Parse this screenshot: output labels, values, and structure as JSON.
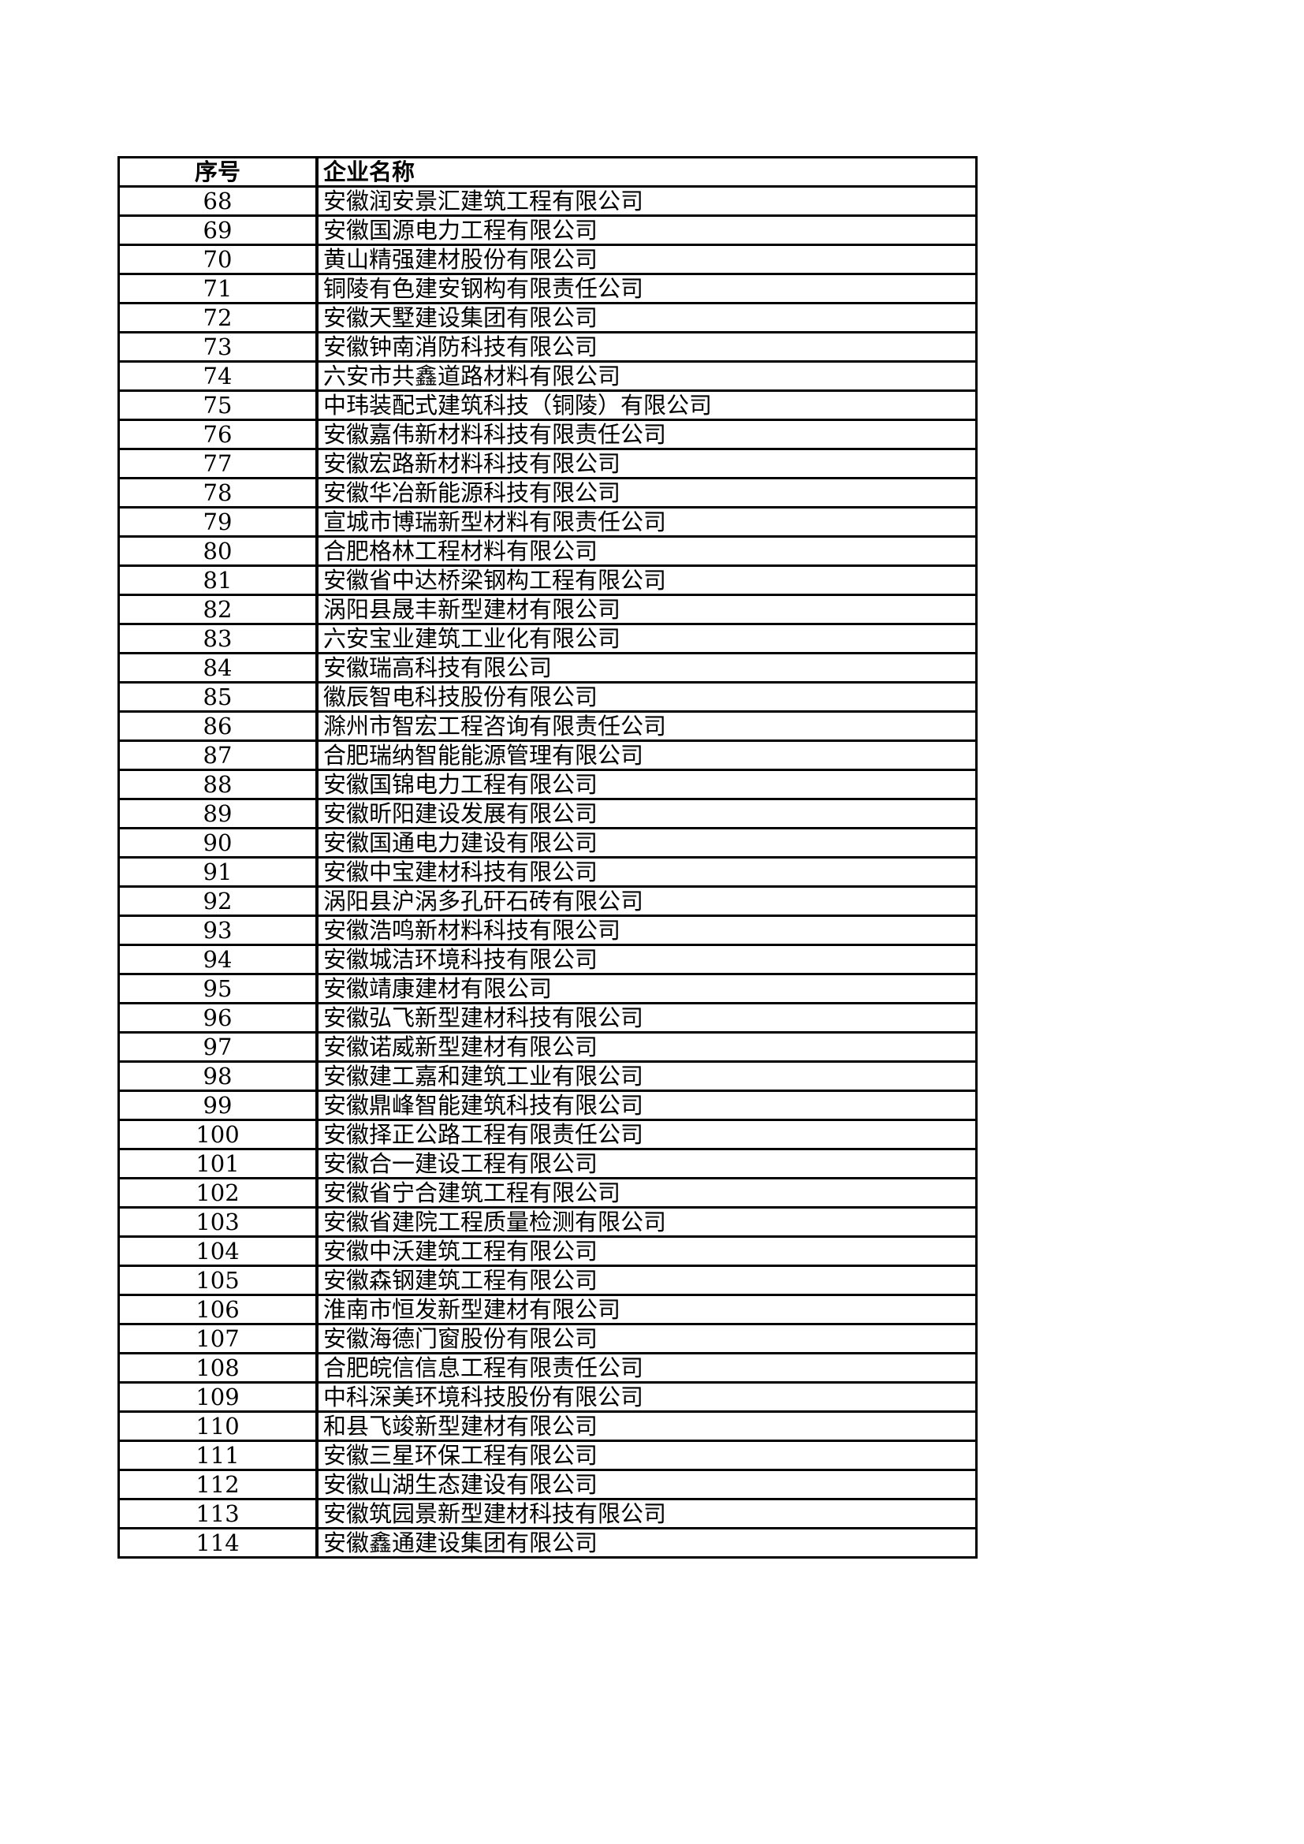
{
  "table": {
    "headers": [
      "序号",
      "企业名称"
    ],
    "rows": [
      [
        "68",
        "安徽润安景汇建筑工程有限公司"
      ],
      [
        "69",
        "安徽国源电力工程有限公司"
      ],
      [
        "70",
        "黄山精强建材股份有限公司"
      ],
      [
        "71",
        "铜陵有色建安钢构有限责任公司"
      ],
      [
        "72",
        "安徽天墅建设集团有限公司"
      ],
      [
        "73",
        "安徽钟南消防科技有限公司"
      ],
      [
        "74",
        "六安市共鑫道路材料有限公司"
      ],
      [
        "75",
        "中玮装配式建筑科技（铜陵）有限公司"
      ],
      [
        "76",
        "安徽嘉伟新材料科技有限责任公司"
      ],
      [
        "77",
        "安徽宏路新材料科技有限公司"
      ],
      [
        "78",
        "安徽华冶新能源科技有限公司"
      ],
      [
        "79",
        "宣城市博瑞新型材料有限责任公司"
      ],
      [
        "80",
        "合肥格林工程材料有限公司"
      ],
      [
        "81",
        "安徽省中达桥梁钢构工程有限公司"
      ],
      [
        "82",
        "涡阳县晟丰新型建材有限公司"
      ],
      [
        "83",
        "六安宝业建筑工业化有限公司"
      ],
      [
        "84",
        "安徽瑞高科技有限公司"
      ],
      [
        "85",
        "徽辰智电科技股份有限公司"
      ],
      [
        "86",
        "滁州市智宏工程咨询有限责任公司"
      ],
      [
        "87",
        "合肥瑞纳智能能源管理有限公司"
      ],
      [
        "88",
        "安徽国锦电力工程有限公司"
      ],
      [
        "89",
        "安徽昕阳建设发展有限公司"
      ],
      [
        "90",
        "安徽国通电力建设有限公司"
      ],
      [
        "91",
        "安徽中宝建材科技有限公司"
      ],
      [
        "92",
        "涡阳县沪涡多孔矸石砖有限公司"
      ],
      [
        "93",
        "安徽浩鸣新材料科技有限公司"
      ],
      [
        "94",
        "安徽城洁环境科技有限公司"
      ],
      [
        "95",
        "安徽靖康建材有限公司"
      ],
      [
        "96",
        "安徽弘飞新型建材科技有限公司"
      ],
      [
        "97",
        "安徽诺威新型建材有限公司"
      ],
      [
        "98",
        "安徽建工嘉和建筑工业有限公司"
      ],
      [
        "99",
        "安徽鼎峰智能建筑科技有限公司"
      ],
      [
        "100",
        "安徽择正公路工程有限责任公司"
      ],
      [
        "101",
        "安徽合一建设工程有限公司"
      ],
      [
        "102",
        "安徽省宁合建筑工程有限公司"
      ],
      [
        "103",
        "安徽省建院工程质量检测有限公司"
      ],
      [
        "104",
        "安徽中沃建筑工程有限公司"
      ],
      [
        "105",
        "安徽森钢建筑工程有限公司"
      ],
      [
        "106",
        "淮南市恒发新型建材有限公司"
      ],
      [
        "107",
        "安徽海德门窗股份有限公司"
      ],
      [
        "108",
        "合肥皖信信息工程有限责任公司"
      ],
      [
        "109",
        "中科深美环境科技股份有限公司"
      ],
      [
        "110",
        "和县飞竣新型建材有限公司"
      ],
      [
        "111",
        "安徽三星环保工程有限公司"
      ],
      [
        "112",
        "安徽山湖生态建设有限公司"
      ],
      [
        "113",
        "安徽筑园景新型建材科技有限公司"
      ],
      [
        "114",
        "安徽鑫通建设集团有限公司"
      ]
    ]
  }
}
